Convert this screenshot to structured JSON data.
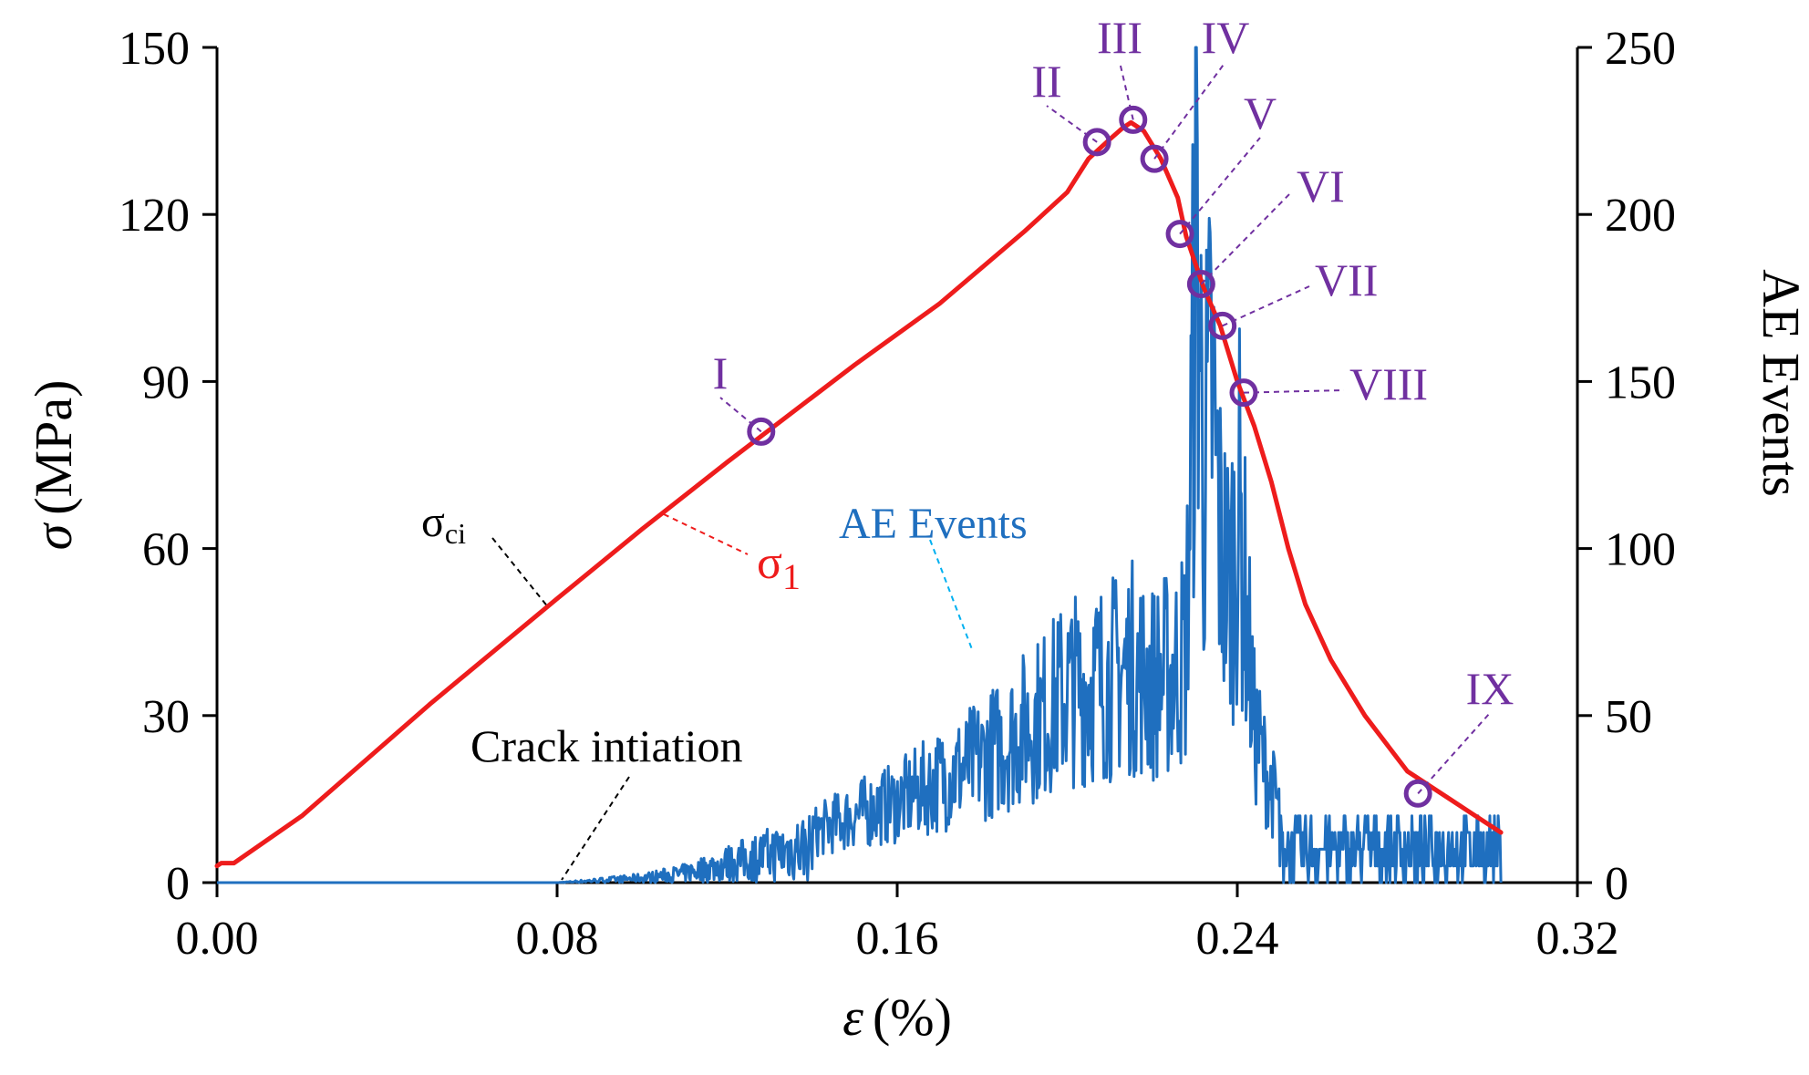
{
  "chart_data": {
    "type": "line",
    "xlabel_symbol": "ε",
    "xlabel_unit": "(%)",
    "ylabel_symbol": "σ",
    "ylabel_unit": "(MPa)",
    "y2label": "AE Events",
    "xlim": [
      0,
      0.32
    ],
    "ylim": [
      0,
      150
    ],
    "y2lim": [
      0,
      250
    ],
    "xticks": [
      "0.00",
      "0.08",
      "0.16",
      "0.24",
      "0.32"
    ],
    "yticks": [
      "0",
      "30",
      "60",
      "90",
      "120",
      "150"
    ],
    "y2ticks": [
      "0",
      "50",
      "100",
      "150",
      "200",
      "250"
    ],
    "colors": {
      "stress": "#ee1c1c",
      "ae": "#1f6fbf",
      "points": "#7030a0",
      "text": "#000000"
    },
    "series": [
      {
        "name": "σ1",
        "axis": "left",
        "x": [
          0,
          0.001,
          0.004,
          0.02,
          0.05,
          0.08,
          0.1,
          0.12,
          0.15,
          0.17,
          0.19,
          0.2,
          0.205,
          0.21,
          0.213,
          0.215,
          0.218,
          0.222,
          0.226,
          0.228,
          0.232,
          0.236,
          0.24,
          0.244,
          0.248,
          0.252,
          0.256,
          0.262,
          0.27,
          0.28,
          0.29,
          0.295,
          0.302
        ],
        "values": [
          3,
          3.5,
          3.5,
          12,
          32,
          51,
          63.5,
          75.5,
          93,
          104,
          117,
          124,
          130,
          133.5,
          135.5,
          136.5,
          135,
          130,
          123,
          116,
          107,
          100,
          90,
          82,
          72,
          60,
          50,
          40,
          30,
          20,
          15,
          12.5,
          9
        ]
      },
      {
        "name": "AE Events",
        "axis": "right",
        "x": [
          0,
          0.08,
          0.09,
          0.1,
          0.11,
          0.12,
          0.13,
          0.14,
          0.15,
          0.16,
          0.17,
          0.18,
          0.19,
          0.195,
          0.2,
          0.21,
          0.215,
          0.22,
          0.225,
          0.228,
          0.2305,
          0.232,
          0.234,
          0.236,
          0.238,
          0.2405,
          0.242,
          0.244,
          0.246,
          0.248,
          0.252,
          0.256,
          0.26,
          0.265,
          0.27,
          0.28,
          0.29,
          0.298,
          0.302
        ],
        "values": [
          0,
          0,
          1,
          2,
          4,
          8,
          12,
          16,
          22,
          26,
          33,
          40,
          50,
          55,
          62,
          66,
          70,
          65,
          68,
          75,
          220,
          130,
          160,
          110,
          95,
          120,
          90,
          50,
          40,
          30,
          20,
          12,
          10,
          8,
          6,
          5,
          4,
          3,
          0
        ]
      }
    ],
    "points": [
      {
        "label": "I",
        "x": 0.128,
        "y": 81
      },
      {
        "label": "II",
        "x": 0.207,
        "y": 133
      },
      {
        "label": "III",
        "x": 0.2155,
        "y": 137
      },
      {
        "label": "IV",
        "x": 0.2205,
        "y": 130
      },
      {
        "label": "V",
        "x": 0.2265,
        "y": 116.5
      },
      {
        "label": "VI",
        "x": 0.2315,
        "y": 107.5
      },
      {
        "label": "VII",
        "x": 0.2365,
        "y": 100
      },
      {
        "label": "VIII",
        "x": 0.2415,
        "y": 88
      },
      {
        "label": "IX",
        "x": 0.2825,
        "y": 16
      }
    ],
    "annotations": {
      "sigma_ci_main": "σ",
      "sigma_ci_sub": "ci",
      "sigma1_main": "σ",
      "sigma1_sub": "1",
      "ae_label": "AE Events",
      "crack": "Crack intiation"
    }
  }
}
